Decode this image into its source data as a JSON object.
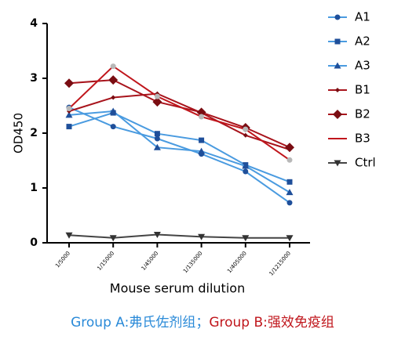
{
  "chart_data": {
    "type": "line",
    "x_label": "Mouse serum  dilution",
    "y_label": "OD450",
    "categories": [
      "1/5000",
      "1/15000",
      "1/45000",
      "1/135000",
      "1/405000",
      "1/1215000"
    ],
    "ylim": [
      0,
      4
    ],
    "yticks": [
      0,
      1,
      2,
      3,
      4
    ],
    "series": [
      {
        "name": "A1",
        "color": "#4a9be0",
        "marker_color": "#1f4f9a",
        "marker": "circle",
        "values": [
          2.47,
          2.12,
          1.9,
          1.62,
          1.3,
          0.73
        ]
      },
      {
        "name": "A2",
        "color": "#4a9be0",
        "marker_color": "#1f4f9a",
        "marker": "square",
        "values": [
          2.12,
          2.37,
          1.99,
          1.87,
          1.42,
          1.11
        ]
      },
      {
        "name": "A3",
        "color": "#4a9be0",
        "marker_color": "#1f4f9a",
        "marker": "triangle",
        "values": [
          2.33,
          2.4,
          1.74,
          1.67,
          1.4,
          0.92
        ]
      },
      {
        "name": "B1",
        "color": "#a8141c",
        "marker_color": "#7a0d12",
        "marker": "small-diamond",
        "values": [
          2.4,
          2.65,
          2.72,
          2.37,
          1.96,
          1.7
        ]
      },
      {
        "name": "B2",
        "color": "#a8141c",
        "marker_color": "#7a0d12",
        "marker": "diamond",
        "values": [
          2.91,
          2.97,
          2.57,
          2.38,
          2.1,
          1.74
        ]
      },
      {
        "name": "B3",
        "color": "#c0161c",
        "marker_color": "#b8b8b8",
        "marker": "circle",
        "legend_marker": false,
        "values": [
          2.45,
          3.22,
          2.67,
          2.3,
          2.07,
          1.51
        ]
      },
      {
        "name": "Ctrl",
        "color": "#444444",
        "marker_color": "#333333",
        "marker": "triangle-down",
        "values": [
          0.14,
          0.09,
          0.15,
          0.11,
          0.09,
          0.09
        ]
      }
    ],
    "caption": [
      {
        "text": "Group A:弗氏佐剂组；",
        "color": "#2a8ad8"
      },
      {
        "text": "Group B:强效免疫组",
        "color": "#c0161c"
      }
    ]
  }
}
